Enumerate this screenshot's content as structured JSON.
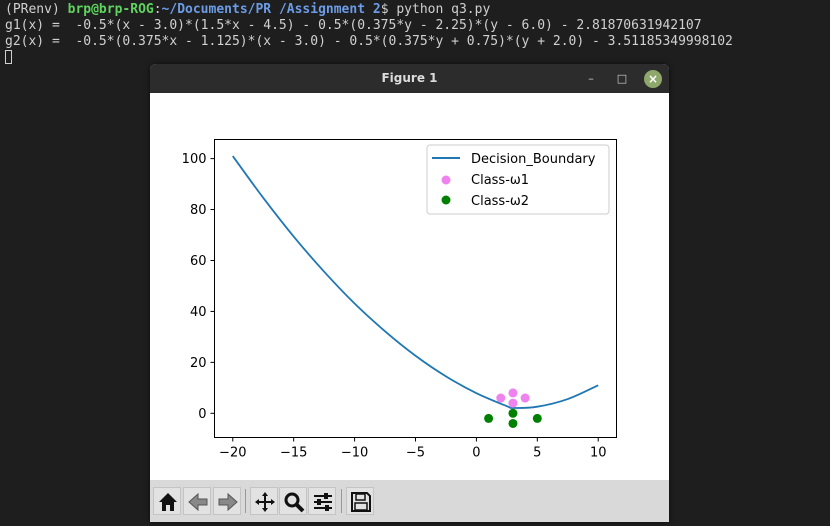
{
  "terminal": {
    "prompt_prefix": "(PRenv) ",
    "user_host": "brp@brp-ROG",
    "colon": ":",
    "path": "~/Documents/PR /Assignment 2",
    "command": "$ python q3.py",
    "output": [
      "g1(x) =  -0.5*(x - 3.0)*(1.5*x - 4.5) - 0.5*(0.375*y - 2.25)*(y - 6.0) - 2.81870631942107",
      "g2(x) =  -0.5*(0.375*x - 1.125)*(x - 3.0) - 0.5*(0.375*y + 0.75)*(y + 2.0) - 3.51185349998102"
    ]
  },
  "window": {
    "title": "Figure 1",
    "minimize_glyph": "–",
    "maximize_glyph": "□",
    "close_glyph": "×"
  },
  "chart_data": {
    "type": "scatter",
    "title": "",
    "xlabel": "",
    "ylabel": "",
    "xlim": [
      -21.5,
      11.5
    ],
    "ylim": [
      -9.5,
      107.5
    ],
    "xticks": [
      -20,
      -15,
      -10,
      -5,
      0,
      5,
      10
    ],
    "xtick_labels": [
      "−20",
      "−15",
      "−10",
      "−5",
      "0",
      "5",
      "10"
    ],
    "yticks": [
      0,
      20,
      40,
      60,
      80,
      100
    ],
    "ytick_labels": [
      "0",
      "20",
      "40",
      "60",
      "80",
      "100"
    ],
    "grid": false,
    "legend_position": "upper right",
    "series": [
      {
        "name": "Decision_Boundary",
        "kind": "line",
        "color": "#1f77b4",
        "x": [
          -20,
          -17.5,
          -15,
          -12.5,
          -10,
          -7.5,
          -5,
          -2.5,
          0,
          2.5,
          3,
          5,
          7.5,
          10
        ],
        "y": [
          101,
          84.6,
          69.4,
          55.6,
          43.1,
          32.2,
          22.6,
          14.5,
          7.9,
          2.8,
          2.1,
          2.6,
          5.6,
          11
        ]
      },
      {
        "name": "Class-ω1",
        "kind": "scatter",
        "color": "#ee82ee",
        "x": [
          2,
          3,
          3,
          4
        ],
        "y": [
          6,
          4,
          8,
          6
        ]
      },
      {
        "name": "Class-ω2",
        "kind": "scatter",
        "color": "#008000",
        "x": [
          1,
          3,
          3,
          5
        ],
        "y": [
          -2,
          0,
          -4,
          -2
        ]
      }
    ]
  },
  "toolbar": {
    "buttons": [
      {
        "name": "home-button",
        "icon": "home-icon"
      },
      {
        "name": "back-button",
        "icon": "back-arrow-icon"
      },
      {
        "name": "forward-button",
        "icon": "forward-arrow-icon"
      },
      {
        "name": "pan-button",
        "icon": "move-icon"
      },
      {
        "name": "zoom-button",
        "icon": "magnifier-icon"
      },
      {
        "name": "configure-subplots-button",
        "icon": "sliders-icon"
      },
      {
        "name": "save-button",
        "icon": "floppy-disk-icon"
      }
    ]
  }
}
